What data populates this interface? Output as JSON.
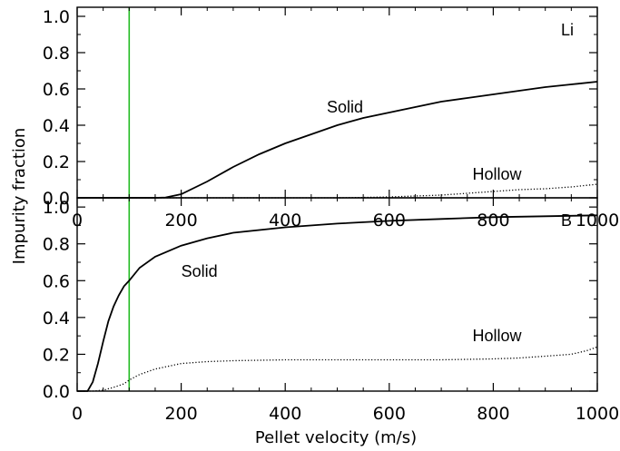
{
  "chart_data": [
    {
      "type": "line",
      "panel": "top",
      "title": "",
      "panel_label": "Li",
      "xlim": [
        0,
        1000
      ],
      "ylim": [
        0,
        1.05
      ],
      "xticks": [
        0,
        200,
        400,
        600,
        800,
        1000
      ],
      "yticks": [
        "0.0",
        "0.2",
        "0.4",
        "0.6",
        "0.8",
        "1.0"
      ],
      "vertical_line": {
        "x": 100,
        "color": "#22bb22"
      },
      "series": [
        {
          "name": "Solid",
          "style": "solid",
          "color": "#000000",
          "x": [
            0,
            100,
            150,
            170,
            200,
            250,
            300,
            350,
            400,
            450,
            500,
            550,
            600,
            650,
            700,
            750,
            800,
            850,
            900,
            950,
            1000
          ],
          "y": [
            0,
            0,
            0,
            0.002,
            0.02,
            0.09,
            0.17,
            0.24,
            0.3,
            0.35,
            0.4,
            0.44,
            0.47,
            0.5,
            0.53,
            0.55,
            0.57,
            0.59,
            0.61,
            0.625,
            0.64
          ]
        },
        {
          "name": "Hollow",
          "style": "dotted",
          "color": "#000000",
          "x": [
            0,
            300,
            400,
            500,
            550,
            600,
            650,
            700,
            750,
            800,
            850,
            900,
            950,
            1000
          ],
          "y": [
            0,
            0,
            0,
            0,
            0.002,
            0.005,
            0.01,
            0.015,
            0.025,
            0.035,
            0.045,
            0.05,
            0.06,
            0.075
          ]
        }
      ],
      "annotations": [
        {
          "text": "Solid",
          "x": 480,
          "y": 0.47
        },
        {
          "text": "Hollow",
          "x": 760,
          "y": 0.1
        }
      ]
    },
    {
      "type": "line",
      "panel": "bottom",
      "title": "",
      "panel_label": "B",
      "xlabel": "Pellet velocity (m/s)",
      "ylabel": "Impurity fraction",
      "xlim": [
        0,
        1000
      ],
      "ylim": [
        0,
        1.05
      ],
      "xticks": [
        0,
        200,
        400,
        600,
        800,
        1000
      ],
      "yticks": [
        "0.0",
        "0.2",
        "0.4",
        "0.6",
        "0.8",
        "1.0"
      ],
      "vertical_line": {
        "x": 100,
        "color": "#22bb22"
      },
      "series": [
        {
          "name": "Solid",
          "style": "solid",
          "color": "#000000",
          "x": [
            0,
            20,
            30,
            40,
            50,
            60,
            70,
            80,
            90,
            100,
            120,
            150,
            200,
            250,
            300,
            400,
            500,
            600,
            700,
            800,
            900,
            1000
          ],
          "y": [
            0,
            0,
            0.05,
            0.15,
            0.27,
            0.38,
            0.46,
            0.52,
            0.57,
            0.6,
            0.67,
            0.73,
            0.79,
            0.83,
            0.86,
            0.89,
            0.91,
            0.925,
            0.935,
            0.945,
            0.95,
            0.955
          ]
        },
        {
          "name": "Hollow",
          "style": "dotted",
          "color": "#000000",
          "x": [
            0,
            30,
            50,
            70,
            90,
            100,
            120,
            150,
            200,
            250,
            300,
            400,
            500,
            600,
            700,
            800,
            850,
            900,
            950,
            980,
            1000
          ],
          "y": [
            0,
            0,
            0.005,
            0.02,
            0.04,
            0.06,
            0.09,
            0.12,
            0.15,
            0.16,
            0.165,
            0.17,
            0.17,
            0.17,
            0.17,
            0.175,
            0.18,
            0.19,
            0.2,
            0.22,
            0.24
          ]
        }
      ],
      "annotations": [
        {
          "text": "Solid",
          "x": 200,
          "y": 0.62
        },
        {
          "text": "Hollow",
          "x": 760,
          "y": 0.27
        }
      ]
    }
  ]
}
